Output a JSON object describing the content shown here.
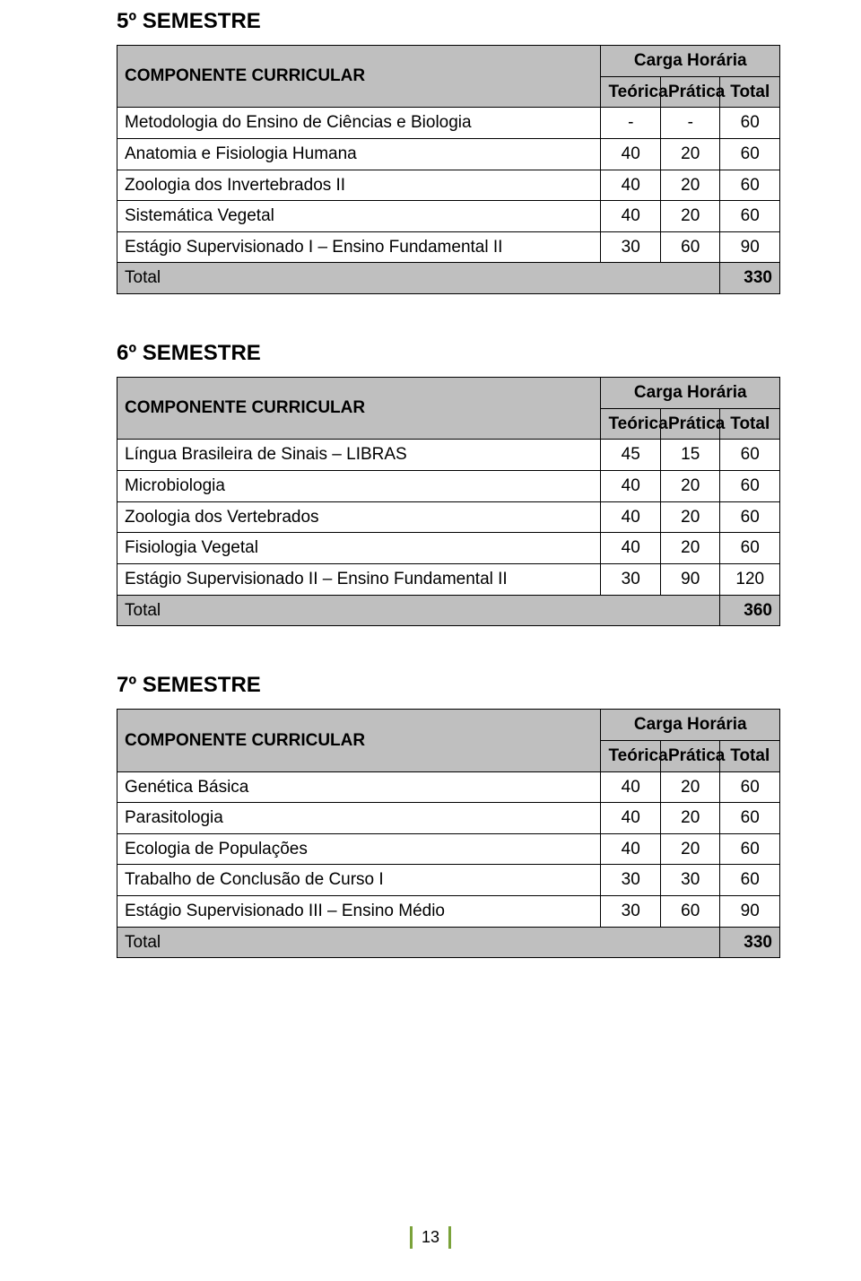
{
  "page_number": "13",
  "colors": {
    "header_bg": "#bfbfbf",
    "border": "#000000",
    "accent_green": "#7aa23a"
  },
  "common": {
    "componente_label": "COMPONENTE CURRICULAR",
    "carga_horaria_label": "Carga Horária",
    "teorica_label": "Teórica",
    "pratica_label": "Prática",
    "total_label": "Total",
    "row_total_label": "Total"
  },
  "sem5": {
    "heading": "5º SEMESTRE",
    "rows": [
      {
        "name": "Metodologia do Ensino de Ciências e Biologia",
        "t": "-",
        "p": "-",
        "tot": "60"
      },
      {
        "name": "Anatomia e Fisiologia Humana",
        "t": "40",
        "p": "20",
        "tot": "60"
      },
      {
        "name": "Zoologia dos Invertebrados II",
        "t": "40",
        "p": "20",
        "tot": "60"
      },
      {
        "name": "Sistemática Vegetal",
        "t": "40",
        "p": "20",
        "tot": "60"
      },
      {
        "name": "Estágio Supervisionado I – Ensino Fundamental II",
        "t": "30",
        "p": "60",
        "tot": "90"
      }
    ],
    "total": "330"
  },
  "sem6": {
    "heading": "6º SEMESTRE",
    "rows": [
      {
        "name": "Língua Brasileira de Sinais – LIBRAS",
        "t": "45",
        "p": "15",
        "tot": "60"
      },
      {
        "name": "Microbiologia",
        "t": "40",
        "p": "20",
        "tot": "60"
      },
      {
        "name": "Zoologia dos Vertebrados",
        "t": "40",
        "p": "20",
        "tot": "60"
      },
      {
        "name": "Fisiologia Vegetal",
        "t": "40",
        "p": "20",
        "tot": "60"
      },
      {
        "name": "Estágio Supervisionado II – Ensino Fundamental II",
        "t": "30",
        "p": "90",
        "tot": "120"
      }
    ],
    "total": "360"
  },
  "sem7": {
    "heading": "7º SEMESTRE",
    "rows": [
      {
        "name": "Genética Básica",
        "t": "40",
        "p": "20",
        "tot": "60"
      },
      {
        "name": "Parasitologia",
        "t": "40",
        "p": "20",
        "tot": "60"
      },
      {
        "name": "Ecologia de Populações",
        "t": "40",
        "p": "20",
        "tot": "60"
      },
      {
        "name": "Trabalho de Conclusão de Curso I",
        "t": "30",
        "p": "30",
        "tot": "60"
      },
      {
        "name": "Estágio Supervisionado III – Ensino Médio",
        "t": "30",
        "p": "60",
        "tot": "90"
      }
    ],
    "total": "330"
  }
}
